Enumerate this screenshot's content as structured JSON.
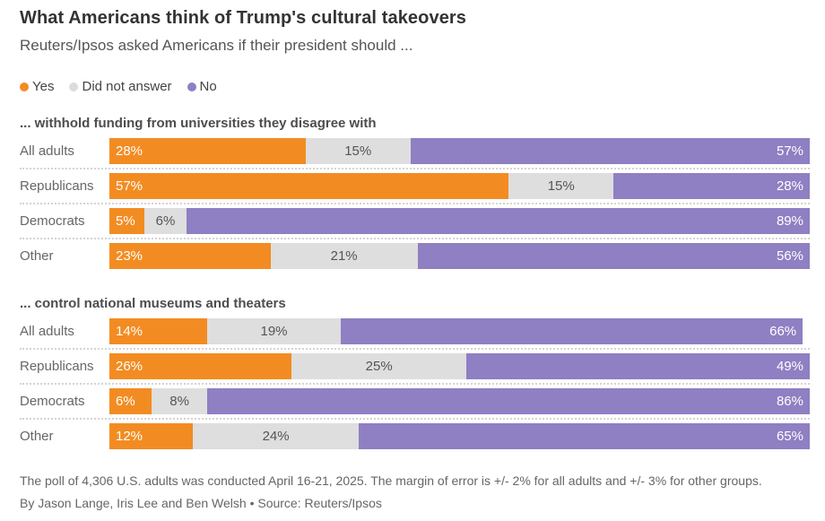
{
  "title": "What Americans think of Trump's cultural takeovers",
  "subtitle": "Reuters/Ipsos asked Americans if their president should ...",
  "colors": {
    "yes": "#F28C22",
    "did_not_answer": "#DEDEDE",
    "no": "#8F7FC3",
    "title_text": "#333333",
    "label_text": "#666666"
  },
  "legend": [
    {
      "key": "yes",
      "label": "Yes",
      "color": "#F28C22"
    },
    {
      "key": "did_not_answer",
      "label": "Did not answer",
      "color": "#DCDCDC"
    },
    {
      "key": "no",
      "label": "No",
      "color": "#8F7FC3"
    }
  ],
  "chart_data": [
    {
      "type": "bar",
      "variant": "stacked-horizontal",
      "title": "... withhold funding from universities they disagree with",
      "categories": [
        "All adults",
        "Republicans",
        "Democrats",
        "Other"
      ],
      "series": [
        {
          "name": "Yes",
          "color_key": "yes",
          "values": [
            28,
            57,
            5,
            23
          ]
        },
        {
          "name": "Did not answer",
          "color_key": "did_not_answer",
          "values": [
            15,
            15,
            6,
            21
          ]
        },
        {
          "name": "No",
          "color_key": "no",
          "values": [
            57,
            28,
            89,
            56
          ]
        }
      ],
      "xlim": [
        0,
        100
      ],
      "unit": "%",
      "value_label_format": "{v}%"
    },
    {
      "type": "bar",
      "variant": "stacked-horizontal",
      "title": "... control national museums and theaters",
      "categories": [
        "All adults",
        "Republicans",
        "Democrats",
        "Other"
      ],
      "series": [
        {
          "name": "Yes",
          "color_key": "yes",
          "values": [
            14,
            26,
            6,
            12
          ]
        },
        {
          "name": "Did not answer",
          "color_key": "did_not_answer",
          "values": [
            19,
            25,
            8,
            24
          ]
        },
        {
          "name": "No",
          "color_key": "no",
          "values": [
            66,
            49,
            86,
            65
          ]
        }
      ],
      "xlim": [
        0,
        100
      ],
      "unit": "%",
      "value_label_format": "{v}%"
    }
  ],
  "footer": {
    "note": "The poll of 4,306 U.S. adults was conducted April 16-21, 2025. The margin of error is +/- 2% for all adults and +/- 3% for other groups.",
    "byline": "By Jason Lange, Iris Lee and Ben Welsh • Source: Reuters/Ipsos"
  }
}
